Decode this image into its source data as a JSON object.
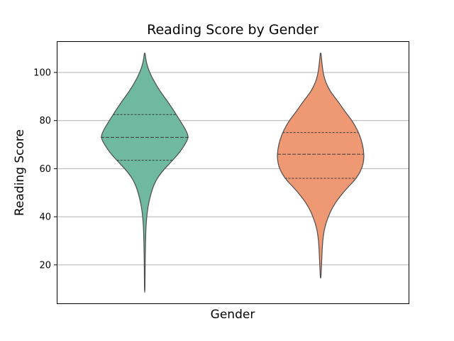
{
  "chart_data": {
    "type": "violin",
    "title": "Reading Score by Gender",
    "xlabel": "Gender",
    "ylabel": "Reading Score",
    "ylim": [
      4,
      113
    ],
    "yticks": [
      20,
      40,
      60,
      80,
      100
    ],
    "grid": "y",
    "legend": "none",
    "series": [
      {
        "color": "#6eb9a0",
        "min": 8.5,
        "max": 108,
        "q1": 63.5,
        "median": 73,
        "q3": 82.5,
        "profile": [
          [
            108,
            0.3
          ],
          [
            104,
            1.5
          ],
          [
            100,
            4.5
          ],
          [
            96,
            9
          ],
          [
            92,
            14.5
          ],
          [
            88,
            21
          ],
          [
            84,
            27
          ],
          [
            80,
            32.5
          ],
          [
            76,
            38
          ],
          [
            73,
            40.5
          ],
          [
            70,
            37
          ],
          [
            66,
            31
          ],
          [
            62,
            22.5
          ],
          [
            58,
            14.5
          ],
          [
            54,
            9
          ],
          [
            50,
            6
          ],
          [
            46,
            3.8
          ],
          [
            42,
            2.3
          ],
          [
            38,
            1.5
          ],
          [
            34,
            1
          ],
          [
            30,
            0.8
          ],
          [
            26,
            0.6
          ],
          [
            20,
            0.4
          ],
          [
            14,
            0.3
          ],
          [
            8.5,
            0.2
          ]
        ]
      },
      {
        "color": "#ee9874",
        "min": 14.5,
        "max": 108,
        "q1": 56,
        "median": 66,
        "q3": 75,
        "profile": [
          [
            108,
            0.3
          ],
          [
            104,
            1.2
          ],
          [
            100,
            2.2
          ],
          [
            96,
            4.5
          ],
          [
            92,
            9
          ],
          [
            88,
            16
          ],
          [
            84,
            22
          ],
          [
            80,
            29
          ],
          [
            76,
            34
          ],
          [
            72,
            37.5
          ],
          [
            68,
            39.5
          ],
          [
            64,
            40
          ],
          [
            60,
            38
          ],
          [
            56,
            33
          ],
          [
            52,
            24.5
          ],
          [
            48,
            17
          ],
          [
            44,
            11
          ],
          [
            40,
            7
          ],
          [
            36,
            4
          ],
          [
            32,
            2.4
          ],
          [
            28,
            1.6
          ],
          [
            24,
            1.2
          ],
          [
            20,
            0.8
          ],
          [
            16,
            0.4
          ],
          [
            14.5,
            0.2
          ]
        ]
      }
    ]
  }
}
